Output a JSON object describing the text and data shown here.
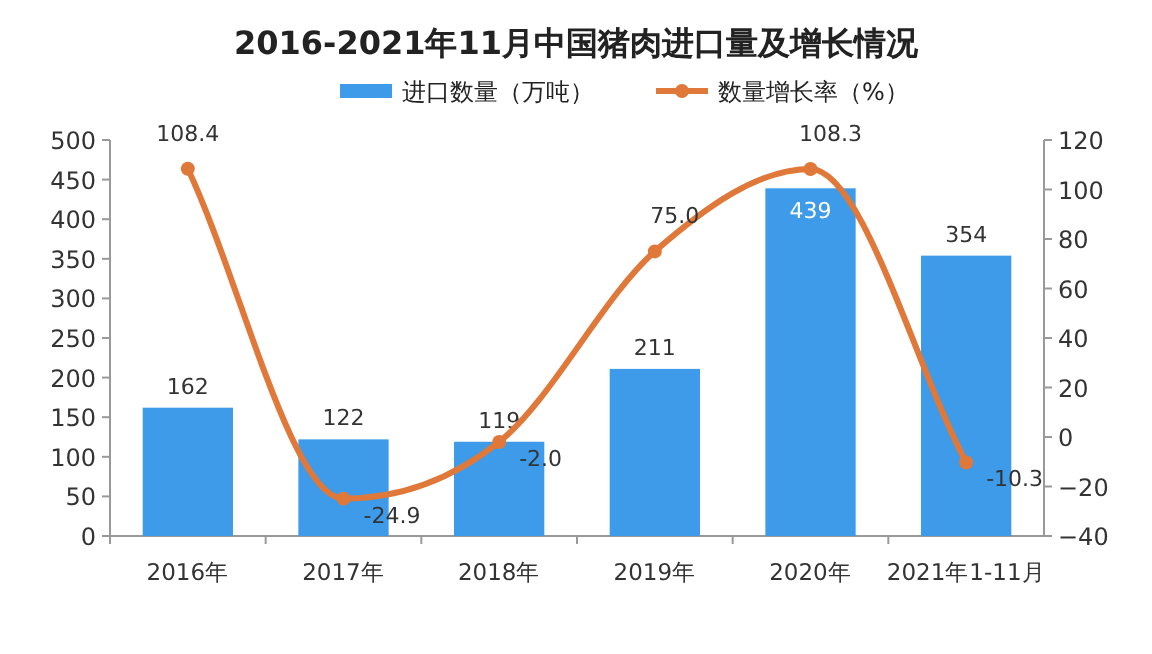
{
  "chart_data": {
    "type": "bar",
    "title": "2016-2021年11月中国猪肉进口量及增长情况",
    "categories": [
      "2016年",
      "2017年",
      "2018年",
      "2019年",
      "2020年",
      "2021年1-11月"
    ],
    "series": [
      {
        "name": "进口数量（万吨）",
        "color": "#3d9be9",
        "values": [
          162,
          122,
          119,
          211,
          439,
          354
        ],
        "value_labels": [
          "162",
          "122",
          "119",
          "211",
          "439",
          "354"
        ]
      },
      {
        "name": "数量增长率（%）",
        "type": "line",
        "axis": "y2",
        "color": "#e0783a",
        "marker": "circle",
        "values": [
          108.4,
          -24.9,
          -2.0,
          75.0,
          108.3,
          -10.3
        ],
        "value_labels": [
          "108.4",
          "-24.9",
          "-2.0",
          "75.0",
          "108.3",
          "-10.3"
        ]
      }
    ],
    "ylim": [
      0,
      500
    ],
    "yticks": [
      0,
      50,
      100,
      150,
      200,
      250,
      300,
      350,
      400,
      450,
      500
    ],
    "y2lim": [
      -40,
      120
    ],
    "y2ticks": [
      -40,
      -20,
      0,
      20,
      40,
      60,
      80,
      100,
      120
    ],
    "legend": "top"
  }
}
